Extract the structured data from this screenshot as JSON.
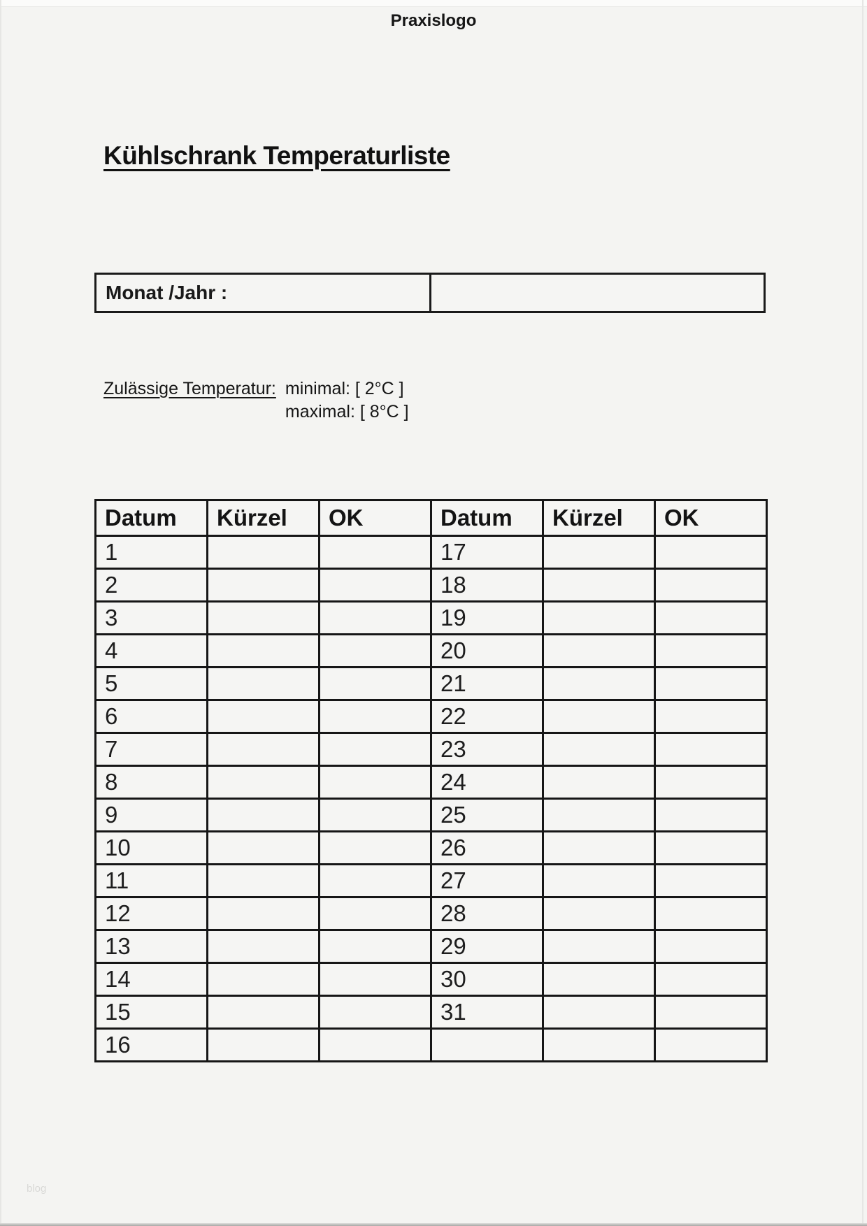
{
  "page": {
    "logo": "Praxislogo",
    "title": "Kühlschrank Temperaturliste",
    "watermark": "blog"
  },
  "month_box": {
    "label": "Monat /Jahr :",
    "value": ""
  },
  "temperature_note": {
    "label": "Zulässige Temperatur:",
    "minimal": "minimal: [ 2°C ]",
    "maximal": "maximal: [ 8°C ]"
  },
  "table": {
    "headers": [
      "Datum",
      "Kürzel",
      "OK",
      "Datum",
      "Kürzel",
      "OK"
    ],
    "rows": [
      {
        "left": "1",
        "left_kurzel": "",
        "left_ok": "",
        "right": "17",
        "right_kurzel": "",
        "right_ok": ""
      },
      {
        "left": "2",
        "left_kurzel": "",
        "left_ok": "",
        "right": "18",
        "right_kurzel": "",
        "right_ok": ""
      },
      {
        "left": "3",
        "left_kurzel": "",
        "left_ok": "",
        "right": "19",
        "right_kurzel": "",
        "right_ok": ""
      },
      {
        "left": "4",
        "left_kurzel": "",
        "left_ok": "",
        "right": "20",
        "right_kurzel": "",
        "right_ok": ""
      },
      {
        "left": "5",
        "left_kurzel": "",
        "left_ok": "",
        "right": "21",
        "right_kurzel": "",
        "right_ok": ""
      },
      {
        "left": "6",
        "left_kurzel": "",
        "left_ok": "",
        "right": "22",
        "right_kurzel": "",
        "right_ok": ""
      },
      {
        "left": "7",
        "left_kurzel": "",
        "left_ok": "",
        "right": "23",
        "right_kurzel": "",
        "right_ok": ""
      },
      {
        "left": "8",
        "left_kurzel": "",
        "left_ok": "",
        "right": "24",
        "right_kurzel": "",
        "right_ok": ""
      },
      {
        "left": "9",
        "left_kurzel": "",
        "left_ok": "",
        "right": "25",
        "right_kurzel": "",
        "right_ok": ""
      },
      {
        "left": "10",
        "left_kurzel": "",
        "left_ok": "",
        "right": "26",
        "right_kurzel": "",
        "right_ok": ""
      },
      {
        "left": "11",
        "left_kurzel": "",
        "left_ok": "",
        "right": "27",
        "right_kurzel": "",
        "right_ok": ""
      },
      {
        "left": "12",
        "left_kurzel": "",
        "left_ok": "",
        "right": "28",
        "right_kurzel": "",
        "right_ok": ""
      },
      {
        "left": "13",
        "left_kurzel": "",
        "left_ok": "",
        "right": "29",
        "right_kurzel": "",
        "right_ok": ""
      },
      {
        "left": "14",
        "left_kurzel": "",
        "left_ok": "",
        "right": "30",
        "right_kurzel": "",
        "right_ok": ""
      },
      {
        "left": "15",
        "left_kurzel": "",
        "left_ok": "",
        "right": "31",
        "right_kurzel": "",
        "right_ok": ""
      },
      {
        "left": "16",
        "left_kurzel": "",
        "left_ok": "",
        "right": "",
        "right_kurzel": "",
        "right_ok": ""
      }
    ]
  },
  "colors": {
    "page_bg": "#f4f4f2",
    "text": "#1a1a1a",
    "border": "#161616",
    "watermark": "#d9d9d7"
  }
}
